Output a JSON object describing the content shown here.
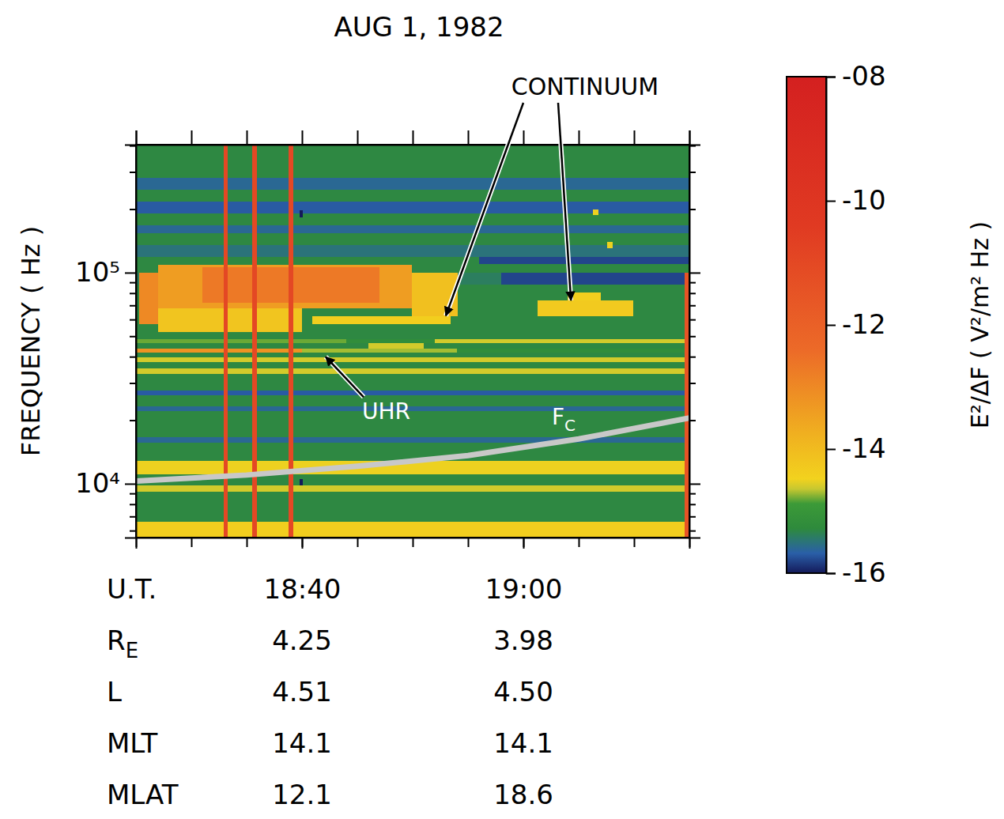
{
  "chart_data": {
    "type": "heatmap",
    "title": "AUG 1, 1982",
    "xlabel": "U.T.",
    "ylabel": "FREQUENCY ( Hz )",
    "log": "y",
    "xlim": [
      1105,
      1155
    ],
    "xticks": [
      {
        "value": 1120,
        "label": "18:40"
      },
      {
        "value": 1140,
        "label": "19:00"
      }
    ],
    "minor_xticks": [
      1105,
      1110,
      1115,
      1120,
      1125,
      1130,
      1135,
      1140,
      1145,
      1150,
      1155
    ],
    "ylim": [
      5560,
      404000
    ],
    "yticks": [
      {
        "value": 10000,
        "label": "10⁴"
      },
      {
        "value": 100000,
        "label": "10⁵"
      }
    ],
    "minor_yticks": [
      6000,
      7000,
      8000,
      9000,
      20000,
      30000,
      40000,
      50000,
      60000,
      70000,
      80000,
      90000,
      200000,
      300000,
      400000
    ],
    "cells": [
      {
        "t": [
          1105,
          1155
        ],
        "f": [
          5560,
          6610
        ],
        "value": -14.4
      },
      {
        "t": [
          1105,
          1155
        ],
        "f": [
          6610,
          9180
        ],
        "value": -15.3
      },
      {
        "t": [
          1105,
          1155
        ],
        "f": [
          9180,
          9830
        ],
        "value": -14.6
      },
      {
        "t": [
          1105,
          1155
        ],
        "f": [
          9830,
          11100
        ],
        "value": -15.3
      },
      {
        "t": [
          1105,
          1155
        ],
        "f": [
          11100,
          12800
        ],
        "value": -14.5
      },
      {
        "t": [
          1105,
          1155
        ],
        "f": [
          12800,
          15700
        ],
        "value": -15.3
      },
      {
        "t": [
          1105,
          1155
        ],
        "f": [
          15700,
          16600
        ],
        "value": -15.6
      },
      {
        "t": [
          1105,
          1155
        ],
        "f": [
          16600,
          22100
        ],
        "value": -15.3
      },
      {
        "t": [
          1105,
          1155
        ],
        "f": [
          22100,
          23200
        ],
        "value": -15.6
      },
      {
        "t": [
          1105,
          1155
        ],
        "f": [
          23200,
          26300
        ],
        "value": -15.3
      },
      {
        "t": [
          1105,
          1155
        ],
        "f": [
          26300,
          27600
        ],
        "value": -15.7
      },
      {
        "t": [
          1105,
          1155
        ],
        "f": [
          27600,
          33000
        ],
        "value": -15.3
      },
      {
        "t": [
          1105,
          1155
        ],
        "f": [
          33000,
          35200
        ],
        "value": -14.6
      },
      {
        "t": [
          1105,
          1155
        ],
        "f": [
          35200,
          37800
        ],
        "value": -15.3
      },
      {
        "t": [
          1105,
          1155
        ],
        "f": [
          37800,
          39600
        ],
        "value": -14.6
      },
      {
        "t": [
          1105,
          1155
        ],
        "f": [
          39600,
          41800
        ],
        "value": -15.3
      },
      {
        "t": [
          1105,
          1155
        ],
        "f": [
          41800,
          43600
        ],
        "value": -15.2
      },
      {
        "t": [
          1105,
          1155
        ],
        "f": [
          43600,
          46500
        ],
        "value": -15.3
      },
      {
        "t": [
          1105,
          1155
        ],
        "f": [
          46500,
          48500
        ],
        "value": -15.2
      },
      {
        "t": [
          1105,
          1155
        ],
        "f": [
          48500,
          87900
        ],
        "value": -15.3
      },
      {
        "t": [
          1105,
          1155
        ],
        "f": [
          87900,
          100000
        ],
        "value": -15.4
      },
      {
        "t": [
          1105,
          1155
        ],
        "f": [
          100000,
          119000
        ],
        "value": -15.3
      },
      {
        "t": [
          1105,
          1155
        ],
        "f": [
          119000,
          135000
        ],
        "value": -15.5
      },
      {
        "t": [
          1105,
          1155
        ],
        "f": [
          135000,
          154000
        ],
        "value": -15.3
      },
      {
        "t": [
          1105,
          1155
        ],
        "f": [
          154000,
          168000
        ],
        "value": -15.6
      },
      {
        "t": [
          1105,
          1155
        ],
        "f": [
          168000,
          191000
        ],
        "value": -15.3
      },
      {
        "t": [
          1105,
          1155
        ],
        "f": [
          191000,
          217000
        ],
        "value": -15.7
      },
      {
        "t": [
          1105,
          1155
        ],
        "f": [
          217000,
          247000
        ],
        "value": -15.3
      },
      {
        "t": [
          1105,
          1155
        ],
        "f": [
          247000,
          281000
        ],
        "value": -15.6
      },
      {
        "t": [
          1105,
          1155
        ],
        "f": [
          281000,
          404000
        ],
        "value": -15.3
      },
      {
        "t": [
          1105,
          1120
        ],
        "f": [
          41800,
          43600
        ],
        "value": -13.2
      },
      {
        "t": [
          1120,
          1134
        ],
        "f": [
          41800,
          43600
        ],
        "value": -14.7
      },
      {
        "t": [
          1105,
          1124
        ],
        "f": [
          46500,
          48500
        ],
        "value": -14.8
      },
      {
        "t": [
          1132,
          1155
        ],
        "f": [
          46500,
          48500
        ],
        "value": -14.6
      },
      {
        "t": [
          1138,
          1155
        ],
        "f": [
          87900,
          100000
        ],
        "value": -15.8
      },
      {
        "t": [
          1136,
          1155
        ],
        "f": [
          110000,
          119000
        ],
        "value": -15.8
      },
      {
        "t": [
          1105.3,
          1107
        ],
        "f": [
          57000,
          100000
        ],
        "value": -13.0
      },
      {
        "t": [
          1107,
          1129.9
        ],
        "f": [
          67800,
          109000
        ],
        "value": -13.4
      },
      {
        "t": [
          1111,
          1127
        ],
        "f": [
          72000,
          106000
        ],
        "value": -12.7
      },
      {
        "t": [
          1107,
          1120
        ],
        "f": [
          52400,
          67800
        ],
        "value": -14.2
      },
      {
        "t": [
          1129.9,
          1134.1
        ],
        "f": [
          62000,
          100000
        ],
        "value": -14.1
      },
      {
        "t": [
          1120.9,
          1133.4
        ],
        "f": [
          57000,
          62000
        ],
        "value": -14.4
      },
      {
        "t": [
          1141.3,
          1149.9
        ],
        "f": [
          62000,
          73900
        ],
        "value": -14.3
      },
      {
        "t": [
          1144,
          1147
        ],
        "f": [
          73900,
          80600
        ],
        "value": -14.4
      },
      {
        "t": [
          1146.3,
          1146.8
        ],
        "f": [
          188000,
          200000
        ],
        "value": -14.5
      },
      {
        "t": [
          1147.6,
          1148.1
        ],
        "f": [
          130000,
          140000
        ],
        "value": -14.5
      },
      {
        "t": [
          1119.8,
          1120.1
        ],
        "f": [
          183000,
          198000
        ],
        "value": -16
      },
      {
        "t": [
          1119.8,
          1120.1
        ],
        "f": [
          9800,
          10500
        ],
        "value": -16
      },
      {
        "t": [
          1112.9,
          1113.3
        ],
        "f": [
          5560,
          404000
        ],
        "value": -11.0
      },
      {
        "t": [
          1115.5,
          1115.9
        ],
        "f": [
          5560,
          404000
        ],
        "value": -11.0
      },
      {
        "t": [
          1118.8,
          1119.2
        ],
        "f": [
          5560,
          404000
        ],
        "value": -11.0
      },
      {
        "t": [
          1154.6,
          1155
        ],
        "f": [
          5560,
          100000
        ],
        "value": -11.5
      },
      {
        "t": [
          1126,
          1131
        ],
        "f": [
          43600,
          46500
        ],
        "value": -14.6
      }
    ],
    "colorbar": {
      "label": "E²/ΔF ( V²/m² Hz )",
      "range": [
        -16,
        -8
      ],
      "ticks": [
        -16,
        -14,
        -12,
        -10,
        {
          "value": -8,
          "label": "-08"
        }
      ]
    },
    "series": [
      {
        "name": "F",
        "subscript": "C",
        "color": "#c8c8c8",
        "x": [
          1105,
          1115,
          1125,
          1135,
          1145,
          1155
        ],
        "values": [
          10300,
          11000,
          12100,
          13600,
          16300,
          20500
        ]
      }
    ],
    "annotations": [
      {
        "text": "CONTINUUM",
        "points": [
          [
            1133.0,
            62500
          ],
          [
            1144.3,
            74000
          ]
        ]
      },
      {
        "text": "UHR",
        "points": [
          [
            1122,
            41000
          ]
        ]
      }
    ],
    "orbit_table": {
      "rows": [
        {
          "label": "R",
          "subscript": "E",
          "values": [
            "4.25",
            "3.98"
          ]
        },
        {
          "label": "L",
          "values": [
            "4.51",
            "4.50"
          ]
        },
        {
          "label": "MLT",
          "values": [
            "14.1",
            "14.1"
          ]
        },
        {
          "label": "MLAT",
          "values": [
            "12.1",
            "18.6"
          ]
        }
      ]
    }
  }
}
